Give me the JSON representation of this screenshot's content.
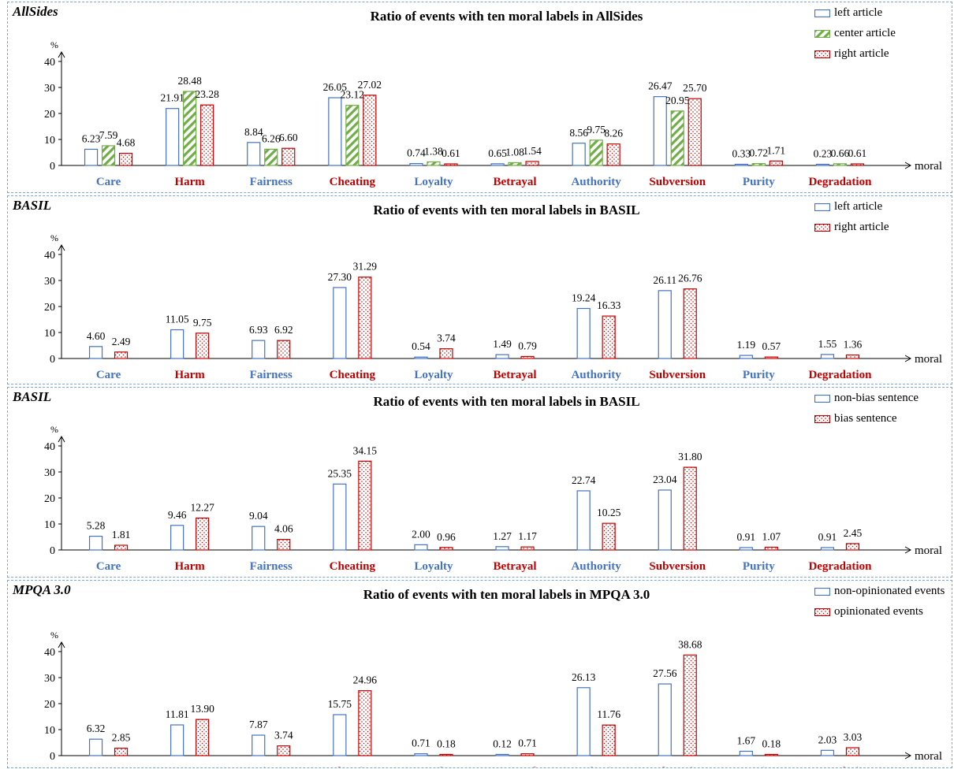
{
  "colors": {
    "left": "#4472c4",
    "center": "#70ad47",
    "right": "#c00000",
    "border": "#7fa7d6"
  },
  "chart_data": [
    {
      "type": "bar",
      "panel_label": "AllSides",
      "title": "Ratio of events with ten moral labels in AllSides",
      "ylabel": "%",
      "xlabel": "moral",
      "ylim": [
        0,
        40
      ],
      "yticks": [
        0,
        10,
        20,
        30,
        40
      ],
      "legend_position": "top-right",
      "categories": [
        "Care",
        "Harm",
        "Fairness",
        "Cheating",
        "Loyalty",
        "Betrayal",
        "Authority",
        "Subversion",
        "Purity",
        "Degradation"
      ],
      "series": [
        {
          "name": "left article",
          "style": "left",
          "values": [
            6.23,
            21.91,
            8.84,
            26.05,
            0.74,
            0.65,
            8.56,
            26.47,
            0.33,
            0.23
          ]
        },
        {
          "name": "center article",
          "style": "center",
          "values": [
            7.59,
            28.48,
            6.26,
            23.12,
            1.38,
            1.08,
            9.75,
            20.95,
            0.72,
            0.66
          ]
        },
        {
          "name": "right article",
          "style": "right",
          "values": [
            4.68,
            23.28,
            6.6,
            27.02,
            0.61,
            1.54,
            8.26,
            25.7,
            1.71,
            0.61
          ]
        }
      ]
    },
    {
      "type": "bar",
      "panel_label": "BASIL",
      "title": "Ratio of events with ten moral labels in BASIL",
      "ylabel": "%",
      "xlabel": "moral",
      "ylim": [
        0,
        40
      ],
      "yticks": [
        0,
        10,
        20,
        30,
        40
      ],
      "legend_position": "top-right",
      "categories": [
        "Care",
        "Harm",
        "Fairness",
        "Cheating",
        "Loyalty",
        "Betrayal",
        "Authority",
        "Subversion",
        "Purity",
        "Degradation"
      ],
      "series": [
        {
          "name": "left article",
          "style": "left",
          "values": [
            4.6,
            11.05,
            6.93,
            27.3,
            0.54,
            1.49,
            19.24,
            26.11,
            1.19,
            1.55
          ]
        },
        {
          "name": "right article",
          "style": "right",
          "values": [
            2.49,
            9.75,
            6.92,
            31.29,
            3.74,
            0.79,
            16.33,
            26.76,
            0.57,
            1.36
          ]
        }
      ]
    },
    {
      "type": "bar",
      "panel_label": "BASIL",
      "title": "Ratio of events with ten moral labels in BASIL",
      "ylabel": "%",
      "xlabel": "moral",
      "ylim": [
        0,
        40
      ],
      "yticks": [
        0,
        10,
        20,
        30,
        40
      ],
      "legend_position": "top-right",
      "categories": [
        "Care",
        "Harm",
        "Fairness",
        "Cheating",
        "Loyalty",
        "Betrayal",
        "Authority",
        "Subversion",
        "Purity",
        "Degradation"
      ],
      "series": [
        {
          "name": "non-bias sentence",
          "style": "left",
          "values": [
            5.28,
            9.46,
            9.04,
            25.35,
            2.0,
            1.27,
            22.74,
            23.04,
            0.91,
            0.91
          ]
        },
        {
          "name": "bias sentence",
          "style": "right",
          "values": [
            1.81,
            12.27,
            4.06,
            34.15,
            0.96,
            1.17,
            10.25,
            31.8,
            1.07,
            2.45
          ]
        }
      ]
    },
    {
      "type": "bar",
      "panel_label": "MPQA 3.0",
      "title": "Ratio of events with ten moral labels in MPQA 3.0",
      "ylabel": "%",
      "xlabel": "moral",
      "ylim": [
        0,
        40
      ],
      "yticks": [
        0,
        10,
        20,
        30,
        40
      ],
      "legend_position": "top-right",
      "categories": [
        "Care",
        "Harm",
        "Fairness",
        "Cheating",
        "Loyalty",
        "Betrayal",
        "Authority",
        "Subversion",
        "Purity",
        "Degradation"
      ],
      "series": [
        {
          "name": "non-opinionated events",
          "style": "left",
          "values": [
            6.32,
            11.81,
            7.87,
            15.75,
            0.71,
            0.12,
            26.13,
            27.56,
            1.67,
            2.03
          ]
        },
        {
          "name": "opinionated events",
          "style": "right",
          "values": [
            2.85,
            13.9,
            3.74,
            24.96,
            0.18,
            0.71,
            11.76,
            38.68,
            0.18,
            3.03
          ]
        }
      ]
    }
  ]
}
